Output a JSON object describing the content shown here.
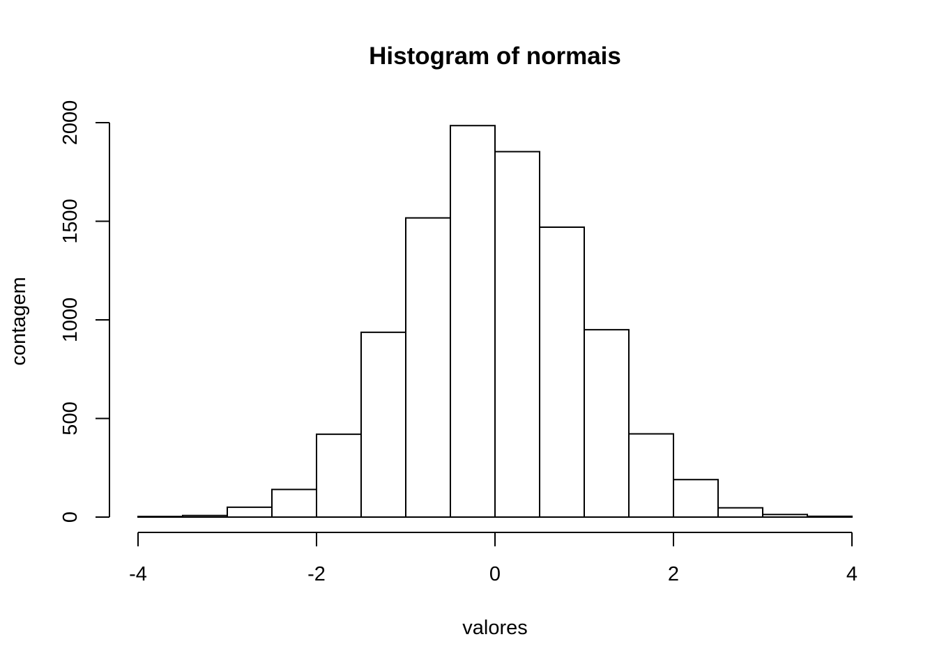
{
  "chart_data": {
    "type": "bar",
    "title": "Histogram of normais",
    "xlabel": "valores",
    "ylabel": "contagem",
    "xlim": [
      -4,
      4
    ],
    "ylim": [
      0,
      2000
    ],
    "bin_width": 0.5,
    "bins": [
      {
        "x0": -4.0,
        "x1": -3.5,
        "count": 3
      },
      {
        "x0": -3.5,
        "x1": -3.0,
        "count": 8
      },
      {
        "x0": -3.0,
        "x1": -2.5,
        "count": 50
      },
      {
        "x0": -2.5,
        "x1": -2.0,
        "count": 140
      },
      {
        "x0": -2.0,
        "x1": -1.5,
        "count": 420
      },
      {
        "x0": -1.5,
        "x1": -1.0,
        "count": 937
      },
      {
        "x0": -1.0,
        "x1": -0.5,
        "count": 1517
      },
      {
        "x0": -0.5,
        "x1": 0.0,
        "count": 1985
      },
      {
        "x0": 0.0,
        "x1": 0.5,
        "count": 1853
      },
      {
        "x0": 0.5,
        "x1": 1.0,
        "count": 1470
      },
      {
        "x0": 1.0,
        "x1": 1.5,
        "count": 950
      },
      {
        "x0": 1.5,
        "x1": 2.0,
        "count": 422
      },
      {
        "x0": 2.0,
        "x1": 2.5,
        "count": 190
      },
      {
        "x0": 2.5,
        "x1": 3.0,
        "count": 47
      },
      {
        "x0": 3.0,
        "x1": 3.5,
        "count": 13
      },
      {
        "x0": 3.5,
        "x1": 4.0,
        "count": 4
      }
    ],
    "x_ticks": [
      {
        "value": -4,
        "label": "-4"
      },
      {
        "value": -2,
        "label": "-2"
      },
      {
        "value": 0,
        "label": "0"
      },
      {
        "value": 2,
        "label": "2"
      },
      {
        "value": 4,
        "label": "4"
      }
    ],
    "y_ticks": [
      {
        "value": 0,
        "label": "0"
      },
      {
        "value": 500,
        "label": "500"
      },
      {
        "value": 1000,
        "label": "1000"
      },
      {
        "value": 1500,
        "label": "1500"
      },
      {
        "value": 2000,
        "label": "2000"
      }
    ],
    "grid": false,
    "legend": "none",
    "colors": {
      "bar_fill": "#ffffff",
      "bar_stroke": "#000000",
      "axis": "#000000",
      "background": "#ffffff"
    }
  }
}
